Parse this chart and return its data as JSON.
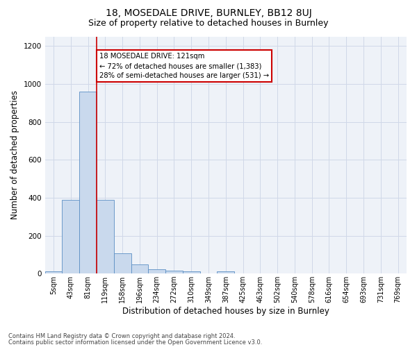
{
  "title1": "18, MOSEDALE DRIVE, BURNLEY, BB12 8UJ",
  "title2": "Size of property relative to detached houses in Burnley",
  "xlabel": "Distribution of detached houses by size in Burnley",
  "ylabel": "Number of detached properties",
  "categories": [
    "5sqm",
    "43sqm",
    "81sqm",
    "119sqm",
    "158sqm",
    "196sqm",
    "234sqm",
    "272sqm",
    "310sqm",
    "349sqm",
    "387sqm",
    "425sqm",
    "463sqm",
    "502sqm",
    "540sqm",
    "578sqm",
    "616sqm",
    "654sqm",
    "693sqm",
    "731sqm",
    "769sqm"
  ],
  "values": [
    12,
    390,
    960,
    390,
    105,
    48,
    22,
    15,
    12,
    0,
    12,
    0,
    0,
    0,
    0,
    0,
    0,
    0,
    0,
    0,
    0
  ],
  "bar_color": "#c9d9ed",
  "bar_edge_color": "#5b8ec4",
  "grid_color": "#d0d8e8",
  "bg_color": "#eef2f8",
  "red_line_x": 2.5,
  "annotation_text": "18 MOSEDALE DRIVE: 121sqm\n← 72% of detached houses are smaller (1,383)\n28% of semi-detached houses are larger (531) →",
  "annotation_box_color": "#ffffff",
  "annotation_box_edge": "#cc0000",
  "footnote1": "Contains HM Land Registry data © Crown copyright and database right 2024.",
  "footnote2": "Contains public sector information licensed under the Open Government Licence v3.0.",
  "ylim": [
    0,
    1250
  ],
  "title1_fontsize": 10,
  "title2_fontsize": 9,
  "tick_fontsize": 7,
  "ylabel_fontsize": 8.5,
  "xlabel_fontsize": 8.5
}
